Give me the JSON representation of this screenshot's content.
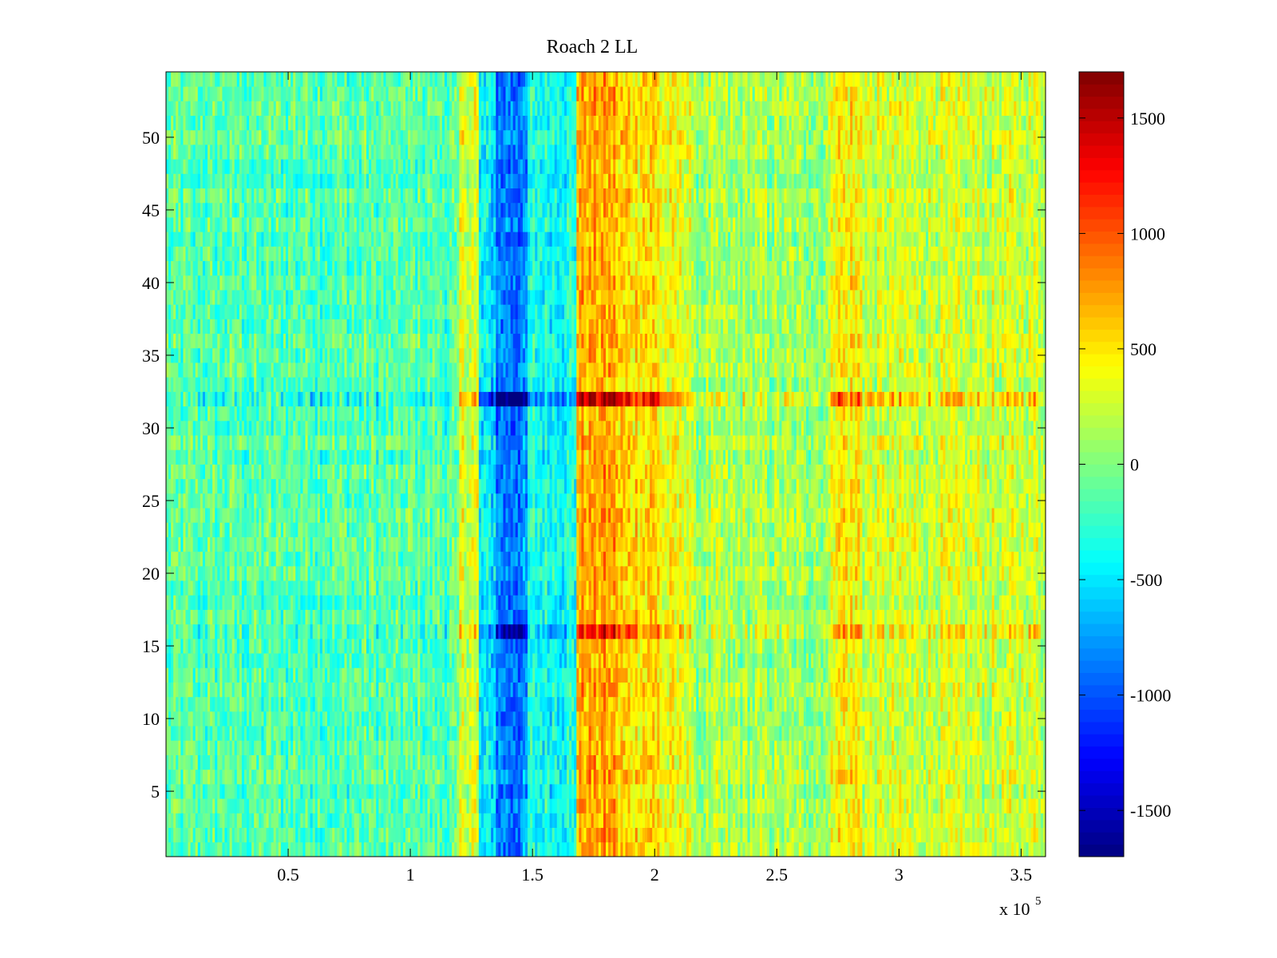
{
  "chart_data": {
    "type": "heatmap",
    "title": "Roach 2 LL",
    "xlabel": "",
    "ylabel": "",
    "x_exponent_label": "x 10",
    "x_exponent_power": "5",
    "x_ticks": [
      0.5,
      1,
      1.5,
      2,
      2.5,
      3,
      3.5
    ],
    "x_tick_labels": [
      "0.5",
      "1",
      "1.5",
      "2",
      "2.5",
      "3",
      "3.5"
    ],
    "xlim": [
      0,
      3.6
    ],
    "xlim_units": "x 10^5",
    "y_ticks": [
      5,
      10,
      15,
      20,
      25,
      30,
      35,
      40,
      45,
      50
    ],
    "y_tick_labels": [
      "5",
      "10",
      "15",
      "20",
      "25",
      "30",
      "35",
      "40",
      "45",
      "50"
    ],
    "ylim": [
      0.5,
      54.5
    ],
    "rows": 54,
    "colormap": "jet",
    "colorbar": {
      "range": [
        -1700,
        1700
      ],
      "ticks": [
        -1500,
        -1000,
        -500,
        0,
        500,
        1000,
        1500
      ],
      "tick_labels": [
        "-1500",
        "-1000",
        "-500",
        "0",
        "500",
        "1000",
        "1500"
      ]
    },
    "column_profile": [
      {
        "x_start": 0,
        "x_end": 1.2,
        "mean": -150
      },
      {
        "x_start": 1.2,
        "x_end": 1.28,
        "mean": 300
      },
      {
        "x_start": 1.28,
        "x_end": 1.35,
        "mean": -500
      },
      {
        "x_start": 1.35,
        "x_end": 1.48,
        "mean": -850
      },
      {
        "x_start": 1.48,
        "x_end": 1.68,
        "mean": -350
      },
      {
        "x_start": 1.68,
        "x_end": 1.85,
        "mean": 700
      },
      {
        "x_start": 1.85,
        "x_end": 2.02,
        "mean": 550
      },
      {
        "x_start": 2.02,
        "x_end": 2.15,
        "mean": 350
      },
      {
        "x_start": 2.15,
        "x_end": 2.72,
        "mean": 100
      },
      {
        "x_start": 2.72,
        "x_end": 2.85,
        "mean": 450
      },
      {
        "x_start": 2.85,
        "x_end": 3.6,
        "mean": 250
      }
    ],
    "row_anomalies": [
      {
        "row": 32,
        "effect": "amplified",
        "factor": 2.2
      },
      {
        "row": 16,
        "effect": "amplified",
        "factor": 1.7
      }
    ],
    "grid": false,
    "legend": "colorbar-right"
  }
}
